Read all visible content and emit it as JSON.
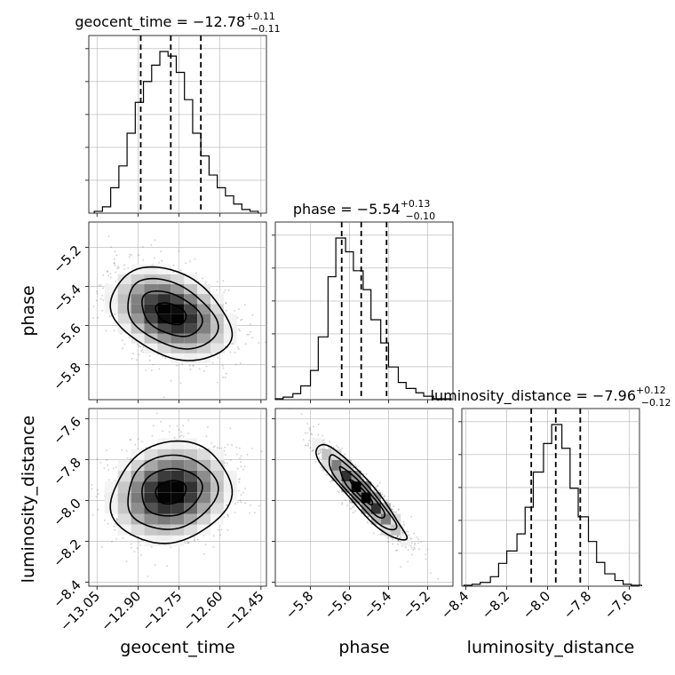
{
  "chart_data": {
    "type": "corner",
    "parameters": [
      "geocent_time",
      "phase",
      "luminosity_distance"
    ],
    "titles": [
      {
        "param": "geocent_time",
        "main": "geocent_time = −12.78",
        "sup": "+0.11",
        "sub": "−0.11"
      },
      {
        "param": "phase",
        "main": "phase = −5.54",
        "sup": "+0.13",
        "sub": "−0.10"
      },
      {
        "param": "luminosity_distance",
        "main": "luminosity_distance = −7.96",
        "sup": "+0.12",
        "sub": "−0.12"
      }
    ],
    "ranges": {
      "geocent_time": [
        -13.08,
        -12.43
      ],
      "phase": [
        -5.98,
        -5.07
      ],
      "luminosity_distance": [
        -8.42,
        -7.55
      ]
    },
    "ticks": {
      "geocent_time": [
        -13.05,
        -12.9,
        -12.75,
        -12.6,
        -12.45
      ],
      "phase": [
        -5.8,
        -5.6,
        -5.4,
        -5.2
      ],
      "luminosity_distance": [
        -8.4,
        -8.2,
        -8.0,
        -7.8,
        -7.6
      ]
    },
    "tick_labels": {
      "geocent_time": [
        "−13.05",
        "−12.90",
        "−12.75",
        "−12.60",
        "−12.45"
      ],
      "phase": [
        "−5.8",
        "−5.6",
        "−5.4",
        "−5.2"
      ],
      "luminosity_distance": [
        "−8.4",
        "−8.2",
        "−8.0",
        "−7.8",
        "−7.6"
      ]
    },
    "quantiles": {
      "geocent_time": [
        -12.89,
        -12.78,
        -12.67
      ],
      "phase": [
        -5.64,
        -5.54,
        -5.41
      ],
      "luminosity_distance": [
        -8.08,
        -7.96,
        -7.84
      ]
    },
    "histograms": {
      "geocent_time": {
        "edges": [
          -13.06,
          -13.03,
          -13.0,
          -12.97,
          -12.94,
          -12.91,
          -12.88,
          -12.85,
          -12.82,
          -12.79,
          -12.76,
          -12.73,
          -12.7,
          -12.67,
          -12.64,
          -12.61,
          -12.58,
          -12.55,
          -12.52,
          -12.49,
          -12.46
        ],
        "heights": [
          2,
          7,
          28,
          52,
          88,
          122,
          145,
          163,
          178,
          173,
          155,
          125,
          88,
          63,
          42,
          28,
          19,
          10,
          4,
          2
        ]
      },
      "phase": {
        "edges": [
          -5.98,
          -5.94,
          -5.89,
          -5.85,
          -5.8,
          -5.76,
          -5.71,
          -5.67,
          -5.62,
          -5.58,
          -5.53,
          -5.49,
          -5.44,
          -5.4,
          -5.35,
          -5.31,
          -5.26,
          -5.22,
          -5.17,
          -5.13,
          -5.08
        ],
        "heights": [
          1,
          3,
          7,
          16,
          34,
          73,
          143,
          188,
          172,
          150,
          128,
          93,
          66,
          38,
          20,
          13,
          8,
          4,
          1,
          1
        ]
      },
      "luminosity_distance": {
        "edges": [
          -8.41,
          -8.37,
          -8.33,
          -8.28,
          -8.24,
          -8.2,
          -8.15,
          -8.11,
          -8.07,
          -8.02,
          -7.98,
          -7.93,
          -7.89,
          -7.85,
          -7.8,
          -7.76,
          -7.72,
          -7.67,
          -7.63,
          -7.59,
          -7.54
        ],
        "heights": [
          1,
          2,
          4,
          10,
          24,
          37,
          55,
          83,
          120,
          150,
          170,
          145,
          103,
          73,
          47,
          25,
          13,
          6,
          2,
          1
        ]
      }
    },
    "pairs": [
      {
        "x": "geocent_time",
        "y": "phase",
        "mean": [
          -12.78,
          -5.54
        ],
        "sd": [
          0.11,
          0.115
        ],
        "rho": -0.35
      },
      {
        "x": "geocent_time",
        "y": "luminosity_distance",
        "mean": [
          -12.78,
          -7.96
        ],
        "sd": [
          0.11,
          0.12
        ],
        "rho": 0.15
      },
      {
        "x": "phase",
        "y": "luminosity_distance",
        "mean": [
          -5.54,
          -7.96
        ],
        "sd": [
          0.115,
          0.12
        ],
        "rho": -0.93
      }
    ],
    "axis_labels": {
      "x": [
        "geocent_time",
        "phase",
        "luminosity_distance"
      ],
      "y": [
        "phase",
        "luminosity_distance"
      ]
    },
    "grid": true
  }
}
